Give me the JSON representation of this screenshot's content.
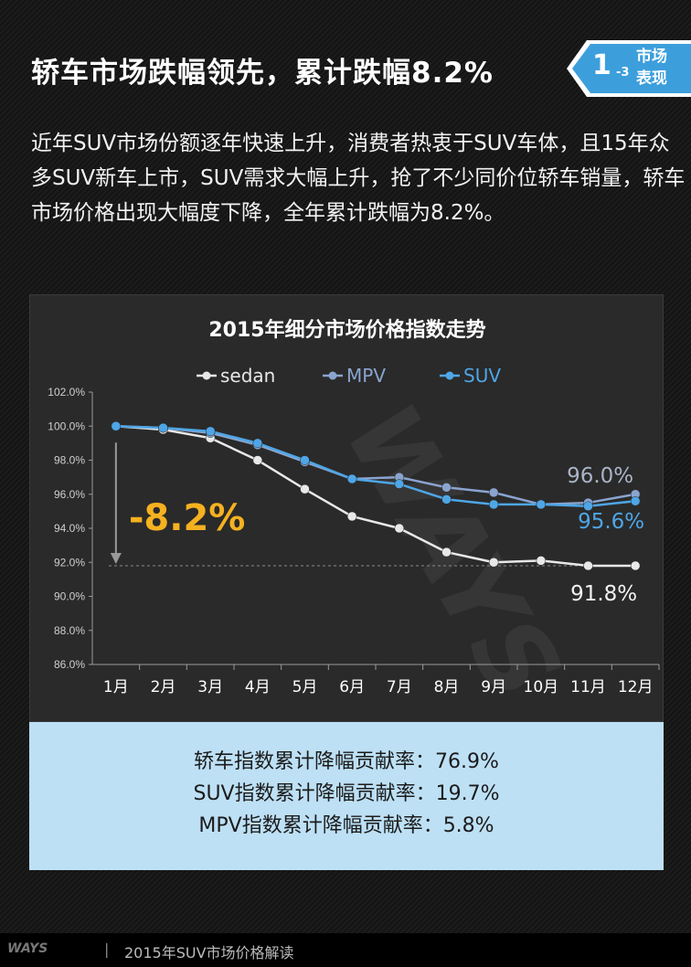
{
  "title": "轿车市场跌幅领先，累计跌幅8.2%",
  "badge": {
    "number": "1",
    "sub": "-3",
    "line1": "市场",
    "line2": "表现"
  },
  "intro": "近年SUV市场份额逐年快速上升，消费者热衷于SUV车体，且15年众多SUV新车上市，SUV需求大幅上升，抢了不少同价位轿车销量，轿车市场价格出现大幅度下降，全年累计跌幅为8.2%。",
  "chart_data": {
    "type": "line",
    "title": "2015年细分市场价格指数走势",
    "categories": [
      "1月",
      "2月",
      "3月",
      "4月",
      "5月",
      "6月",
      "7月",
      "8月",
      "9月",
      "10月",
      "11月",
      "12月"
    ],
    "ylim": [
      86.0,
      102.0
    ],
    "ytick_values": [
      86,
      88,
      90,
      92,
      94,
      96,
      98,
      100,
      102
    ],
    "yticks": [
      "86.0%",
      "88.0%",
      "90.0%",
      "92.0%",
      "94.0%",
      "96.0%",
      "98.0%",
      "100.0%",
      "102.0%"
    ],
    "series": [
      {
        "name": "sedan",
        "color": "#e8e8e8",
        "values": [
          100.0,
          99.8,
          99.3,
          98.0,
          96.3,
          94.7,
          94.0,
          92.6,
          92.0,
          92.1,
          91.8,
          91.8
        ]
      },
      {
        "name": "MPV",
        "color": "#8aa4cf",
        "values": [
          100.0,
          99.9,
          99.6,
          98.9,
          97.9,
          96.9,
          97.0,
          96.4,
          96.1,
          95.4,
          95.5,
          96.0
        ]
      },
      {
        "name": "SUV",
        "color": "#4ea6e6",
        "values": [
          100.0,
          99.9,
          99.7,
          99.0,
          98.0,
          96.9,
          96.6,
          95.7,
          95.4,
          95.4,
          95.3,
          95.6
        ]
      }
    ],
    "end_labels": {
      "sedan": "91.8%",
      "MPV": "96.0%",
      "SUV": "95.6%"
    },
    "annotation": "-8.2%",
    "annotation_color": "#f5b120",
    "watermark": "WAYS"
  },
  "summary": [
    "轿车指数累计降幅贡献率：76.9%",
    "SUV指数累计降幅贡献率：19.7%",
    "MPV指数累计降幅贡献率：5.8%"
  ],
  "footer": {
    "logo": "WAYS",
    "separator": "|",
    "text": "2015年SUV市场价格解读"
  }
}
